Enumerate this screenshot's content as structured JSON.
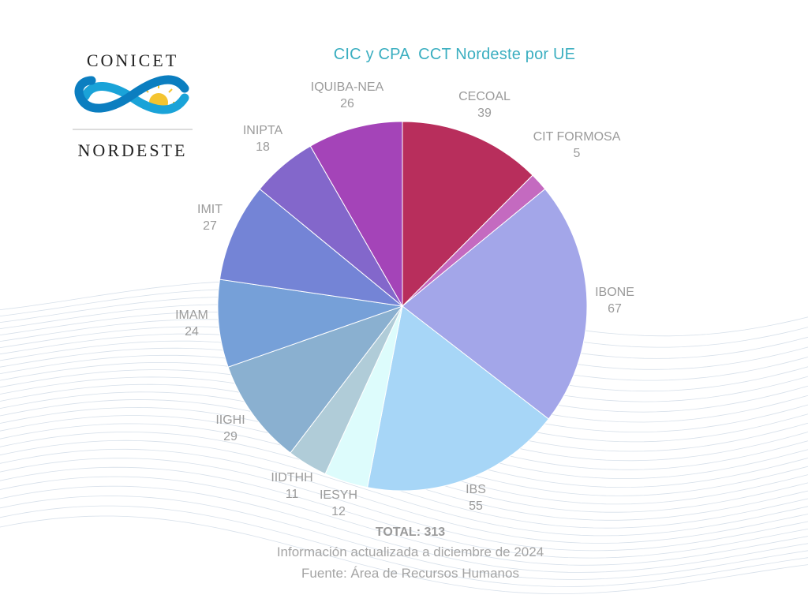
{
  "logo": {
    "top_text": "CONICET",
    "bottom_text": "NORDESTE"
  },
  "colors": {
    "title": "#3aaec0",
    "label": "#9b9b9b"
  },
  "chart_data": {
    "type": "pie",
    "title": "CIC y CPA  CCT Nordeste por UE",
    "slices": [
      {
        "label": "CECOAL",
        "value": 39,
        "color": "#b82e5c"
      },
      {
        "label": "CIT FORMOSA",
        "value": 5,
        "color": "#c46ac0"
      },
      {
        "label": "IBONE",
        "value": 67,
        "color": "#a3a6e9"
      },
      {
        "label": "IBS",
        "value": 55,
        "color": "#a7d6f7"
      },
      {
        "label": "IESYH",
        "value": 12,
        "color": "#ddfcfc"
      },
      {
        "label": "IIDTHH",
        "value": 11,
        "color": "#b0ccd8"
      },
      {
        "label": "IIGHI",
        "value": 29,
        "color": "#8ab0d0"
      },
      {
        "label": "IMAM",
        "value": 24,
        "color": "#76a0d8"
      },
      {
        "label": "IMIT",
        "value": 27,
        "color": "#7484d6"
      },
      {
        "label": "INIPTA",
        "value": 18,
        "color": "#8367cb"
      },
      {
        "label": "IQUIBA-NEA",
        "value": 26,
        "color": "#a444b8"
      }
    ]
  },
  "footer": {
    "total": "TOTAL: 313",
    "update_note": "Información actualizada a diciembre de 2024",
    "source": "Fuente: Área de Recursos Humanos"
  }
}
